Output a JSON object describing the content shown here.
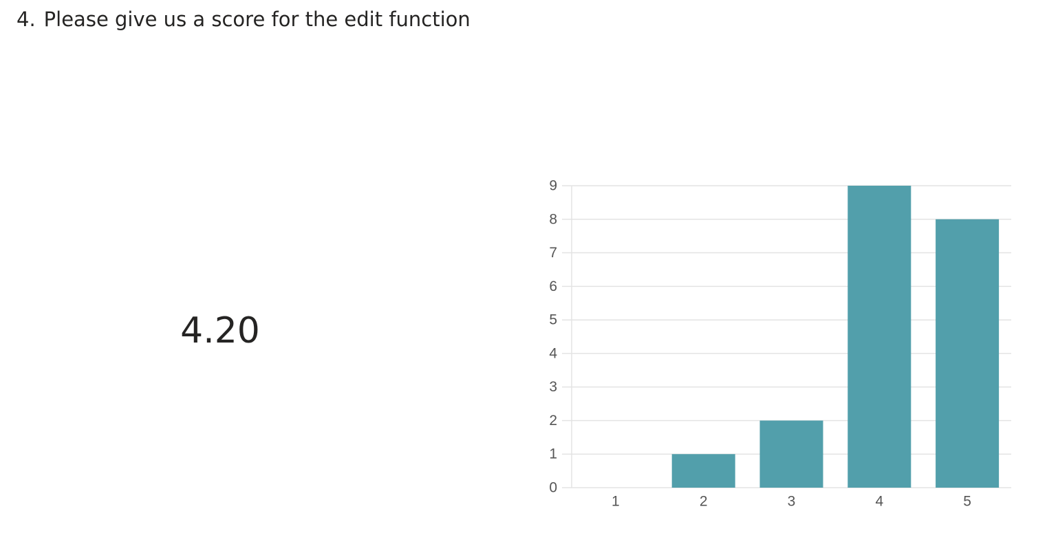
{
  "question": {
    "number": "4.",
    "text": "Please give us a score for the edit function"
  },
  "average_score": "4.20",
  "chart_data": {
    "type": "bar",
    "categories": [
      "1",
      "2",
      "3",
      "4",
      "5"
    ],
    "values": [
      0,
      1,
      2,
      9,
      8
    ],
    "ylim": [
      0,
      9
    ],
    "yticks": [
      0,
      1,
      2,
      3,
      4,
      5,
      6,
      7,
      8,
      9
    ],
    "grid": true,
    "legend": "none",
    "bar_color": "#529fab",
    "grid_color": "#e3e3e3",
    "title": "",
    "xlabel": "",
    "ylabel": ""
  }
}
